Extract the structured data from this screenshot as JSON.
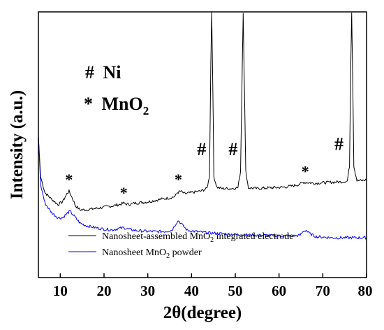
{
  "chart_data": {
    "type": "line",
    "xlabel": "2θ(degree)",
    "ylabel": "Intensity (a.u.)",
    "xlim": [
      5,
      80
    ],
    "x_ticks": [
      10,
      20,
      30,
      40,
      50,
      60,
      70,
      80
    ],
    "grid": false,
    "y_ticks_shown": false,
    "legend_position": "bottom",
    "series": [
      {
        "name": "Nanosheet-assembled MnO2 integrated electrode",
        "color": "#000000",
        "points": [
          [
            5,
            53.5
          ],
          [
            5.5,
            38.0
          ],
          [
            6.5,
            32.0
          ],
          [
            8,
            29.5
          ],
          [
            9.5,
            27.5
          ],
          [
            10.5,
            28.5
          ],
          [
            11.5,
            31.5
          ],
          [
            12,
            32.5
          ],
          [
            12.6,
            30.5
          ],
          [
            13.5,
            27.0
          ],
          [
            14.5,
            25.5
          ],
          [
            16,
            25.5
          ],
          [
            18,
            26.0
          ],
          [
            20,
            26.5
          ],
          [
            22,
            27.0
          ],
          [
            23.5,
            27.5
          ],
          [
            24.5,
            28.0
          ],
          [
            25.5,
            27.5
          ],
          [
            27,
            28.0
          ],
          [
            30,
            28.5
          ],
          [
            33,
            29.5
          ],
          [
            35,
            30.0
          ],
          [
            36.2,
            30.5
          ],
          [
            36.8,
            32.0
          ],
          [
            37.5,
            32.5
          ],
          [
            38.5,
            31.5
          ],
          [
            40,
            32.0
          ],
          [
            42,
            32.5
          ],
          [
            43.5,
            33.5
          ],
          [
            44.1,
            38.0
          ],
          [
            44.4,
            80.0
          ],
          [
            44.6,
            100.0
          ],
          [
            44.8,
            80.0
          ],
          [
            45.1,
            38.0
          ],
          [
            45.8,
            34.0
          ],
          [
            47,
            33.5
          ],
          [
            49,
            33.5
          ],
          [
            50.6,
            33.8
          ],
          [
            51.2,
            40.0
          ],
          [
            51.6,
            80.0
          ],
          [
            51.8,
            100.0
          ],
          [
            52.0,
            80.0
          ],
          [
            52.4,
            40.0
          ],
          [
            53,
            33.8
          ],
          [
            55,
            33.5
          ],
          [
            58,
            33.8
          ],
          [
            61,
            34.0
          ],
          [
            63,
            34.5
          ],
          [
            64.5,
            35.0
          ],
          [
            65.5,
            35.8
          ],
          [
            66.5,
            35.8
          ],
          [
            68,
            35.5
          ],
          [
            71,
            35.8
          ],
          [
            74,
            36.0
          ],
          [
            75.6,
            36.3
          ],
          [
            76.1,
            42.0
          ],
          [
            76.4,
            80.0
          ],
          [
            76.6,
            100.0
          ],
          [
            76.8,
            80.0
          ],
          [
            77.1,
            42.0
          ],
          [
            77.8,
            36.5
          ],
          [
            79,
            36.5
          ],
          [
            80,
            36.8
          ]
        ]
      },
      {
        "name": "Nanosheet MnO2 powder",
        "color": "#0000ff",
        "points": [
          [
            5,
            53.5
          ],
          [
            5.5,
            35.0
          ],
          [
            6.5,
            28.0
          ],
          [
            8,
            24.5
          ],
          [
            9.5,
            22.5
          ],
          [
            10.5,
            22.5
          ],
          [
            11.5,
            24.0
          ],
          [
            12.2,
            25.0
          ],
          [
            13,
            23.5
          ],
          [
            14.5,
            20.5
          ],
          [
            16,
            19.5
          ],
          [
            18,
            18.8
          ],
          [
            20,
            18.2
          ],
          [
            22,
            18.0
          ],
          [
            24.5,
            18.8
          ],
          [
            26,
            18.0
          ],
          [
            28,
            17.6
          ],
          [
            30,
            17.4
          ],
          [
            32,
            17.3
          ],
          [
            34,
            17.4
          ],
          [
            35.5,
            17.8
          ],
          [
            36.5,
            20.5
          ],
          [
            37,
            21.5
          ],
          [
            37.8,
            20.0
          ],
          [
            39,
            17.8
          ],
          [
            41,
            17.3
          ],
          [
            44,
            16.8
          ],
          [
            48,
            16.4
          ],
          [
            52,
            16.1
          ],
          [
            56,
            15.9
          ],
          [
            60,
            15.7
          ],
          [
            63,
            15.6
          ],
          [
            64.8,
            15.9
          ],
          [
            65.6,
            17.5
          ],
          [
            66.2,
            17.8
          ],
          [
            67,
            16.5
          ],
          [
            68.5,
            15.4
          ],
          [
            72,
            15.0
          ],
          [
            76,
            15.0
          ],
          [
            80,
            15.0
          ]
        ]
      }
    ],
    "peak_markers": [
      {
        "symbol": "*",
        "x": 12.0,
        "y": 35.0
      },
      {
        "symbol": "*",
        "x": 24.5,
        "y": 30.0
      },
      {
        "symbol": "*",
        "x": 37.0,
        "y": 35.0
      },
      {
        "symbol": "#",
        "x": 42.3,
        "y": 46.0
      },
      {
        "symbol": "#",
        "x": 49.5,
        "y": 46.0
      },
      {
        "symbol": "*",
        "x": 66.0,
        "y": 38.0
      },
      {
        "symbol": "#",
        "x": 73.7,
        "y": 48.0
      }
    ],
    "phase_legend": [
      {
        "symbol": "#",
        "label": "Ni"
      },
      {
        "symbol": "*",
        "label": "MnO",
        "subscript": "2"
      }
    ],
    "legend": [
      {
        "prefix": "Nanosheet-assembled MnO",
        "sub": "2",
        "suffix": " integrated electrode",
        "color": "#000000"
      },
      {
        "prefix": "Nanosheet MnO",
        "sub": "2",
        "suffix": " powder",
        "color": "#0000ff"
      }
    ]
  }
}
